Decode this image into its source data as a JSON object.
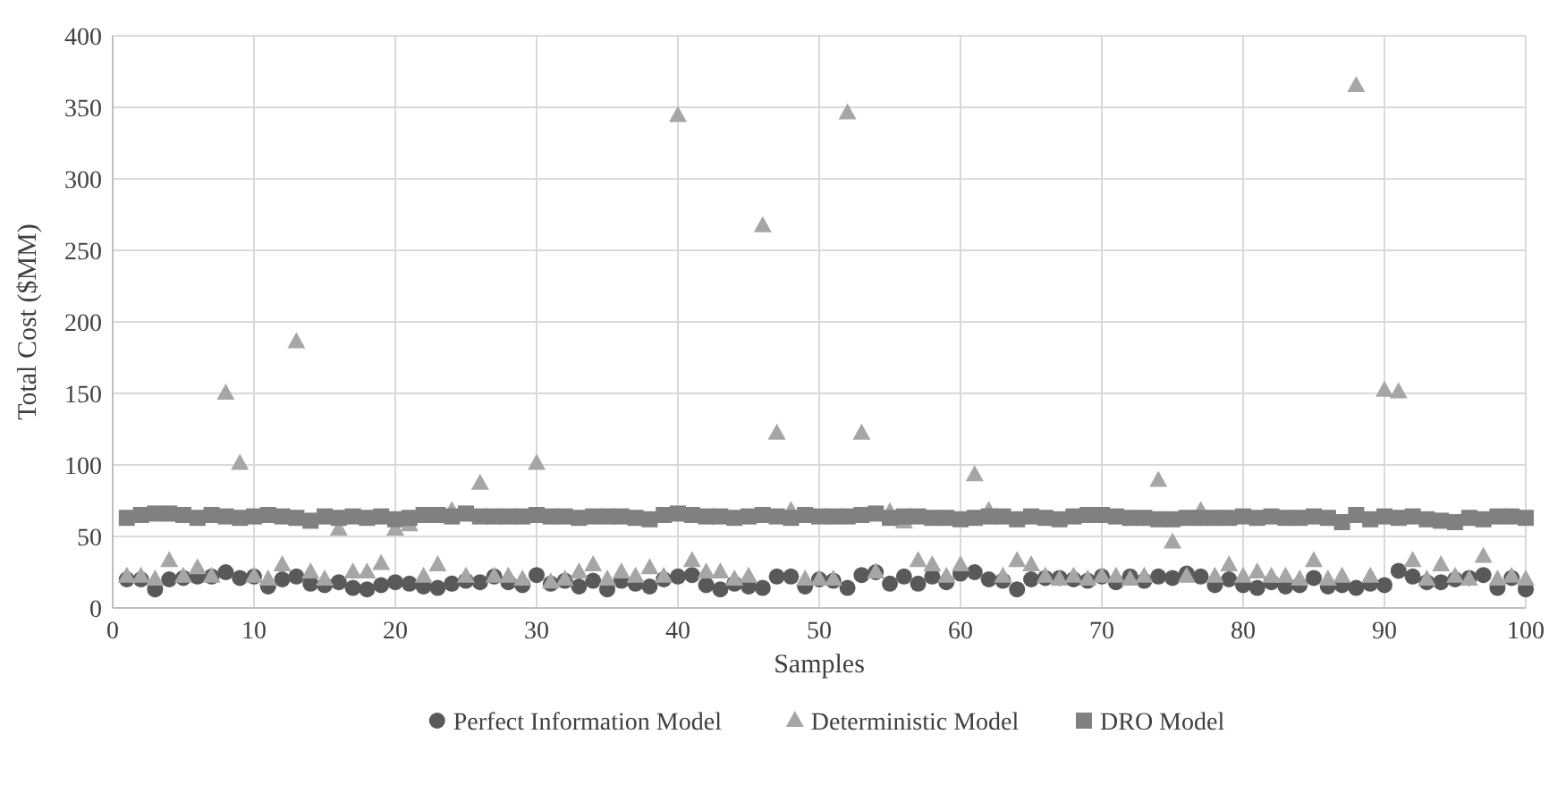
{
  "chart_data": {
    "type": "scatter",
    "xlabel": "Samples",
    "ylabel": "Total Cost ($MM)",
    "xlim": [
      0,
      100
    ],
    "xticks": [
      0,
      10,
      20,
      30,
      40,
      50,
      60,
      70,
      80,
      90,
      100
    ],
    "ylim": [
      0,
      400
    ],
    "yticks": [
      0,
      50,
      100,
      150,
      200,
      250,
      300,
      350,
      400
    ],
    "grid": true,
    "legend": "bottom",
    "x": [
      1,
      2,
      3,
      4,
      5,
      6,
      7,
      8,
      9,
      10,
      11,
      12,
      13,
      14,
      15,
      16,
      17,
      18,
      19,
      20,
      21,
      22,
      23,
      24,
      25,
      26,
      27,
      28,
      29,
      30,
      31,
      32,
      33,
      34,
      35,
      36,
      37,
      38,
      39,
      40,
      41,
      42,
      43,
      44,
      45,
      46,
      47,
      48,
      49,
      50,
      51,
      52,
      53,
      54,
      55,
      56,
      57,
      58,
      59,
      60,
      61,
      62,
      63,
      64,
      65,
      66,
      67,
      68,
      69,
      70,
      71,
      72,
      73,
      74,
      75,
      76,
      77,
      78,
      79,
      80,
      81,
      82,
      83,
      84,
      85,
      86,
      87,
      88,
      89,
      90,
      91,
      92,
      93,
      94,
      95,
      96,
      97,
      98,
      99,
      100
    ],
    "series": [
      {
        "name": "Perfect Information Model",
        "color": "#595959",
        "marker": "circle",
        "values": [
          20,
          20,
          13,
          20,
          21,
          22,
          22,
          25,
          21,
          22,
          15,
          20,
          22,
          17,
          16,
          18,
          14,
          13,
          16,
          18,
          17,
          15,
          14,
          17,
          19,
          18,
          22,
          18,
          16,
          23,
          17,
          19,
          15,
          19,
          13,
          19,
          17,
          15,
          20,
          22,
          23,
          16,
          13,
          17,
          15,
          14,
          22,
          22,
          15,
          20,
          19,
          14,
          23,
          25,
          17,
          22,
          17,
          22,
          18,
          24,
          25,
          20,
          19,
          13,
          20,
          21,
          21,
          20,
          19,
          22,
          18,
          22,
          19,
          22,
          21,
          24,
          22,
          16,
          20,
          16,
          14,
          18,
          15,
          16,
          21,
          15,
          16,
          14,
          17,
          16,
          26,
          22,
          18,
          18,
          20,
          21,
          23,
          14,
          21,
          13
        ]
      },
      {
        "name": "Deterministic Model",
        "color": "#a6a6a6",
        "marker": "triangle",
        "values": [
          22,
          22,
          20,
          33,
          22,
          28,
          22,
          150,
          101,
          22,
          20,
          30,
          186,
          25,
          20,
          55,
          25,
          25,
          31,
          55,
          58,
          22,
          30,
          68,
          22,
          87,
          22,
          22,
          20,
          101,
          18,
          20,
          25,
          30,
          20,
          25,
          22,
          28,
          22,
          344,
          33,
          25,
          25,
          20,
          22,
          267,
          122,
          68,
          20,
          20,
          20,
          346,
          122,
          25,
          67,
          60,
          33,
          30,
          22,
          30,
          93,
          68,
          22,
          33,
          30,
          22,
          20,
          22,
          20,
          22,
          22,
          20,
          22,
          89,
          46,
          22,
          68,
          22,
          30,
          22,
          25,
          22,
          22,
          20,
          33,
          20,
          22,
          365,
          22,
          152,
          151,
          33,
          20,
          30,
          22,
          20,
          36,
          20,
          22,
          20
        ]
      },
      {
        "name": "DRO Model",
        "color": "#808080",
        "marker": "square",
        "values": [
          63,
          65,
          66,
          66,
          65,
          63,
          65,
          64,
          63,
          64,
          65,
          64,
          63,
          61,
          64,
          63,
          64,
          63,
          64,
          62,
          63,
          65,
          65,
          64,
          66,
          64,
          64,
          64,
          64,
          65,
          64,
          64,
          63,
          64,
          64,
          64,
          63,
          62,
          65,
          66,
          65,
          64,
          64,
          63,
          64,
          65,
          64,
          63,
          65,
          64,
          64,
          64,
          65,
          66,
          63,
          64,
          64,
          63,
          63,
          62,
          63,
          64,
          64,
          62,
          64,
          63,
          62,
          64,
          65,
          65,
          64,
          63,
          63,
          62,
          62,
          63,
          63,
          63,
          63,
          64,
          63,
          64,
          63,
          63,
          64,
          63,
          60,
          65,
          62,
          64,
          63,
          64,
          62,
          61,
          60,
          63,
          62,
          64,
          64,
          63
        ]
      }
    ]
  }
}
